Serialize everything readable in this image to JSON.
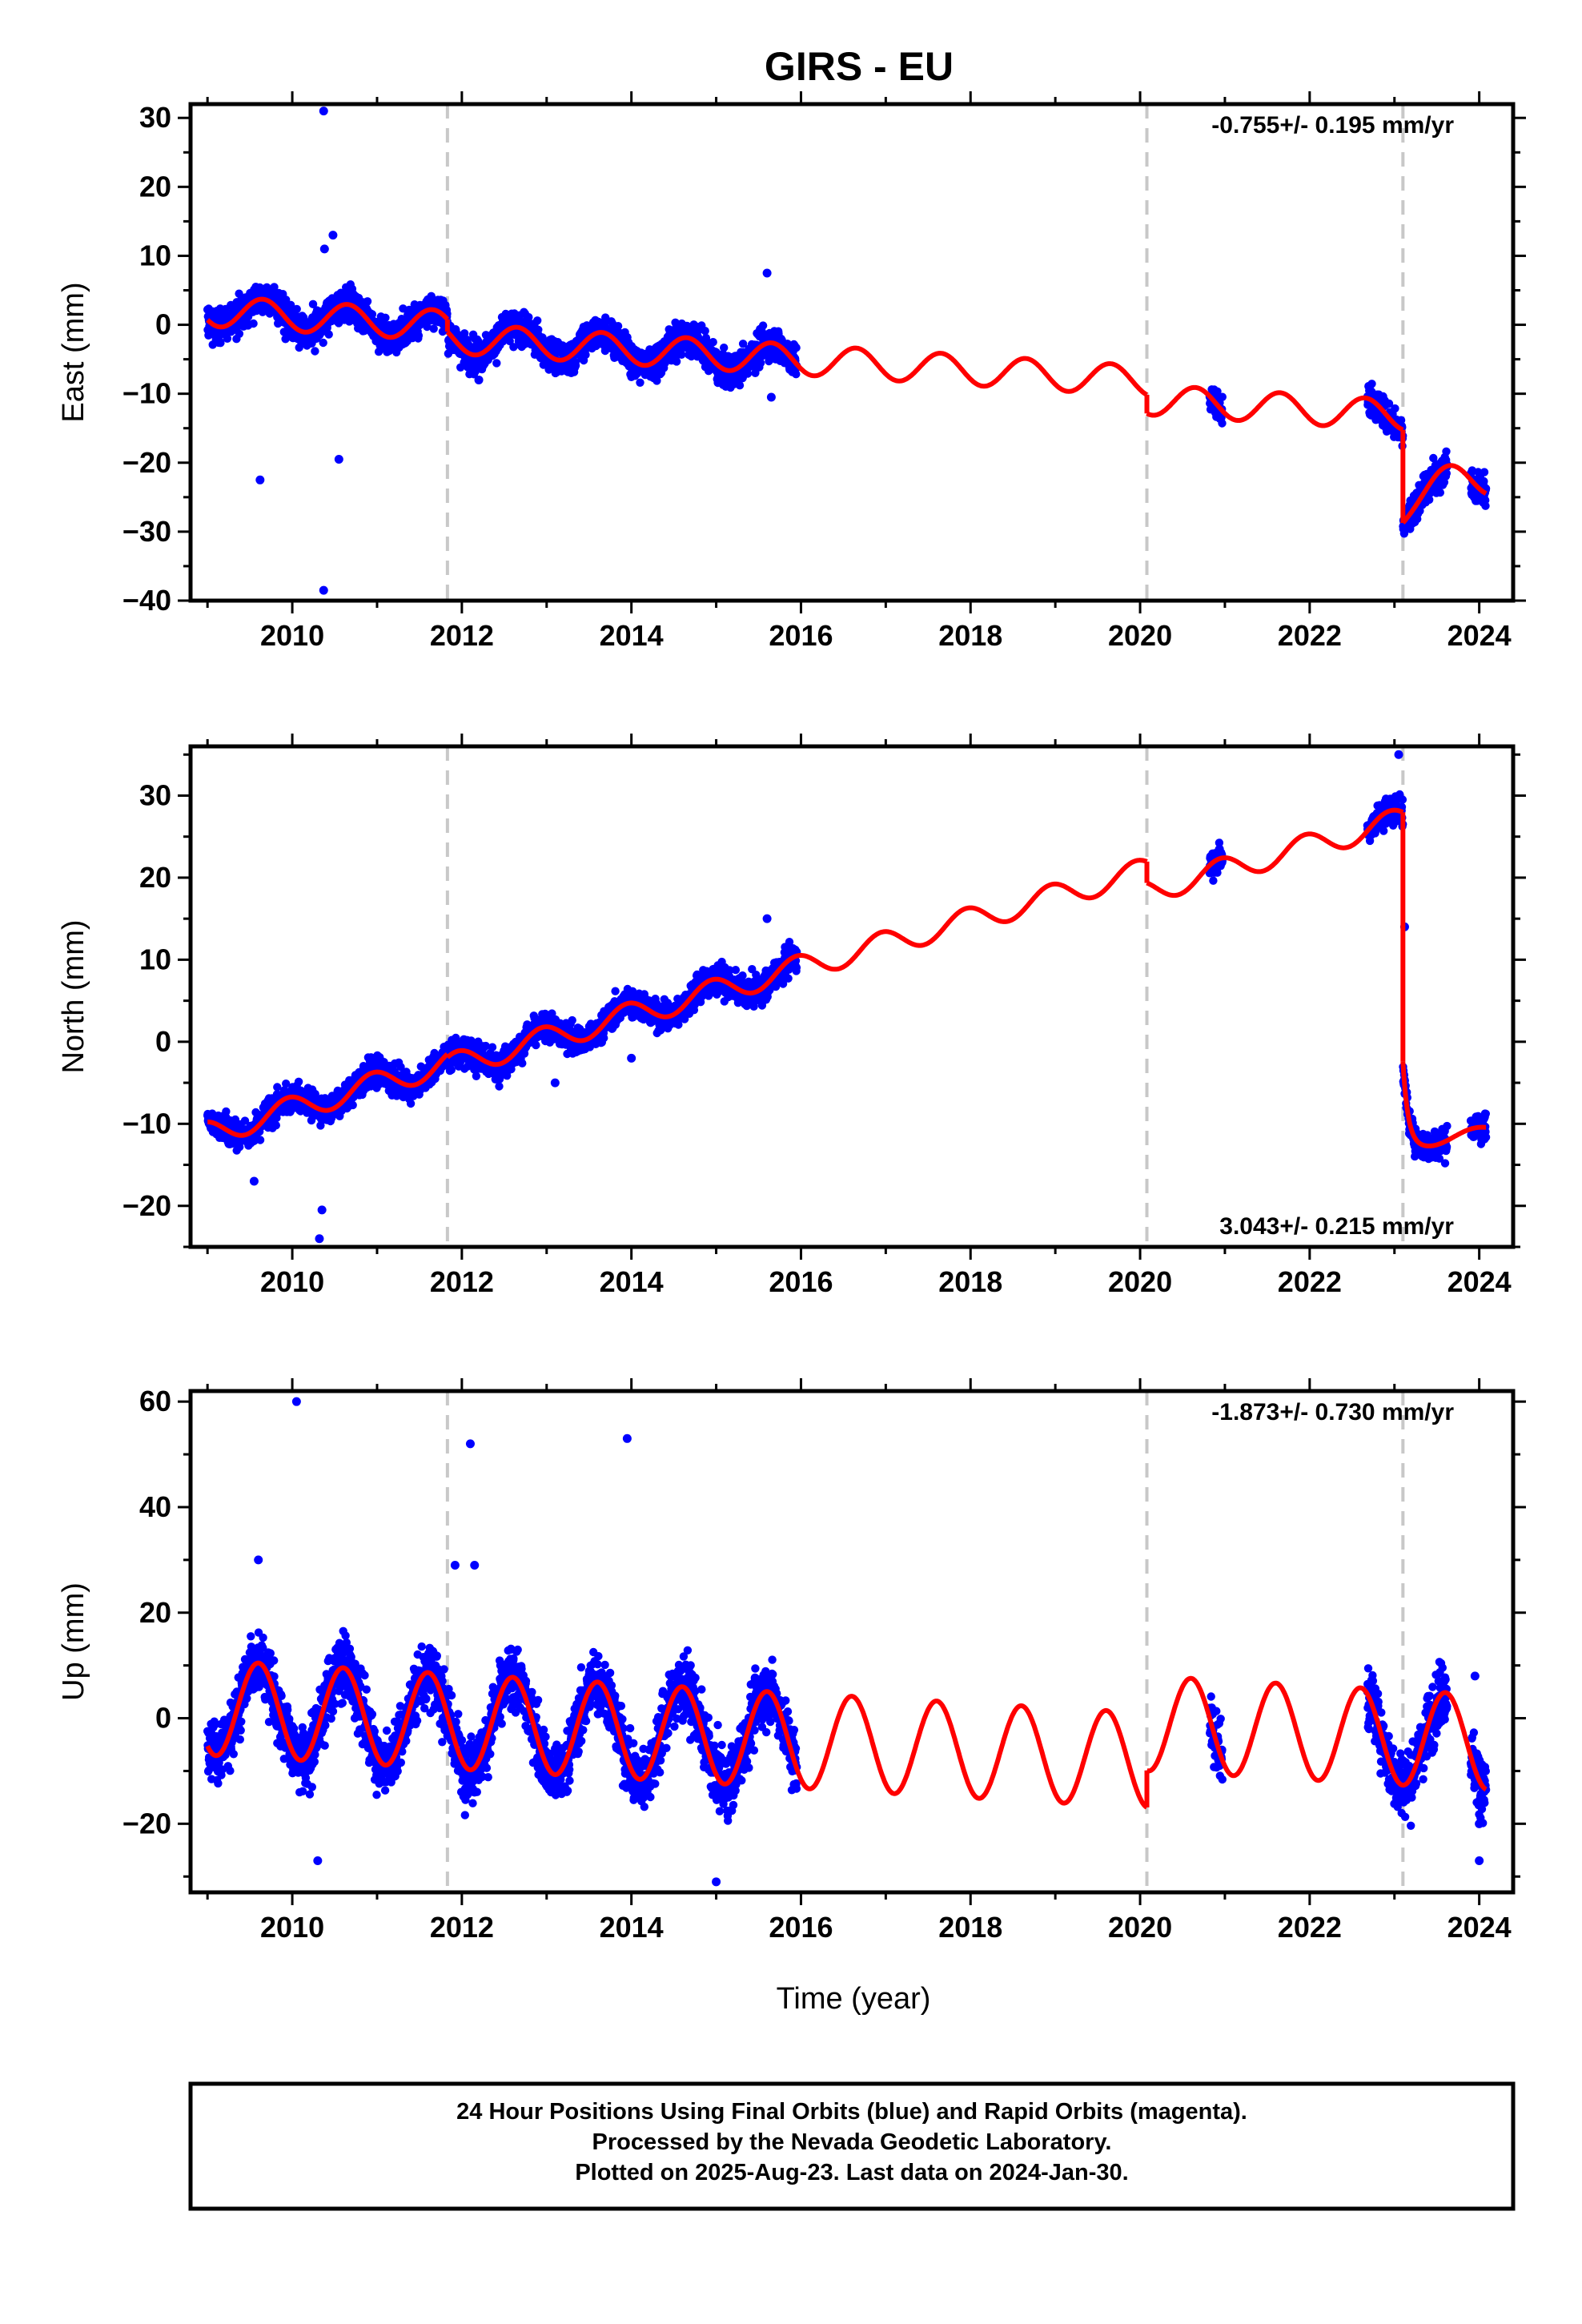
{
  "title": "GIRS - EU",
  "xlabel": "Time (year)",
  "caption": [
    "24 Hour Positions Using Final Orbits (blue) and Rapid Orbits (magenta).",
    "Processed by the Nevada Geodetic Laboratory.",
    "Plotted on 2025-Aug-23. Last data on 2024-Jan-30."
  ],
  "colors": {
    "data": "#0000ff",
    "model": "#ff0000",
    "events": "#c8c8c8",
    "frame": "#000000"
  },
  "chart_data": [
    {
      "type": "scatter",
      "component": "east",
      "ylabel": "East (mm)",
      "rate": "-0.755+/- 0.195 mm/yr",
      "rate_position": "top-right",
      "xlim": [
        2008.8,
        2024.4
      ],
      "ylim": [
        -40,
        32
      ],
      "xticks": [
        2010,
        2012,
        2014,
        2016,
        2018,
        2020,
        2022,
        2024
      ],
      "yticks": [
        -40,
        -30,
        -20,
        -10,
        0,
        10,
        20,
        30
      ],
      "event_lines": [
        2011.83,
        2020.08,
        2023.1
      ],
      "data_spans": [
        [
          2009.0,
          2015.95
        ],
        [
          2020.82,
          2020.97
        ],
        [
          2022.68,
          2023.62
        ],
        [
          2023.9,
          2024.08
        ]
      ],
      "model": {
        "segments": [
          {
            "start": 2009.0,
            "end": 2011.83,
            "offset": 2.0,
            "trend": -0.755,
            "amp": 2.2,
            "phase": 2009.4
          },
          {
            "start": 2011.83,
            "end": 2020.08,
            "offset": 0.2,
            "trend": -0.755,
            "amp": 2.2,
            "phase": 2009.4
          },
          {
            "start": 2020.08,
            "end": 2023.1,
            "offset": -2.5,
            "trend": -0.755,
            "amp": 2.2,
            "phase": 2009.4
          },
          {
            "start": 2023.1,
            "end": 2024.08,
            "offset": -11.0,
            "trend": -0.755,
            "amp": 2.2,
            "phase": 2009.4,
            "decay": [
              -5,
              0.25
            ]
          }
        ]
      },
      "outliers": [
        [
          2010.37,
          31
        ],
        [
          2010.48,
          13
        ],
        [
          2010.38,
          11
        ],
        [
          2009.62,
          -22.5
        ],
        [
          2010.55,
          -19.5
        ],
        [
          2010.37,
          -38.5
        ],
        [
          2015.6,
          7.5
        ],
        [
          2015.65,
          -10.5
        ],
        [
          2012.2,
          -8
        ]
      ],
      "noise": 2.2
    },
    {
      "type": "scatter",
      "component": "north",
      "ylabel": "North (mm)",
      "rate": "3.043+/- 0.215 mm/yr",
      "rate_position": "bottom-right",
      "xlim": [
        2008.8,
        2024.4
      ],
      "ylim": [
        -25,
        36
      ],
      "xticks": [
        2010,
        2012,
        2014,
        2016,
        2018,
        2020,
        2022,
        2024
      ],
      "yticks": [
        -20,
        -10,
        0,
        10,
        20,
        30
      ],
      "event_lines": [
        2011.83,
        2020.08,
        2023.1
      ],
      "data_spans": [
        [
          2009.0,
          2015.95
        ],
        [
          2020.82,
          2020.97
        ],
        [
          2022.68,
          2023.62
        ],
        [
          2023.9,
          2024.08
        ]
      ],
      "model": {
        "segments": [
          {
            "start": 2009.0,
            "end": 2011.83,
            "offset": -11.2,
            "trend": 3.043,
            "amp": 1.5,
            "phase": 2009.7
          },
          {
            "start": 2011.83,
            "end": 2020.08,
            "offset": -11.2,
            "trend": 2.9,
            "amp": 1.5,
            "phase": 2009.7
          },
          {
            "start": 2020.08,
            "end": 2023.1,
            "offset": -13.8,
            "trend": 2.9,
            "amp": 1.5,
            "phase": 2009.7
          },
          {
            "start": 2023.1,
            "end": 2024.08,
            "offset": -41.0,
            "trend": 2.0,
            "amp": 0.6,
            "phase": 2009.7,
            "decay": [
              10,
              0.06
            ]
          }
        ]
      },
      "outliers": [
        [
          2010.32,
          -24
        ],
        [
          2010.35,
          -20.5
        ],
        [
          2009.55,
          -17
        ],
        [
          2014.0,
          -2
        ],
        [
          2013.1,
          -5
        ],
        [
          2015.6,
          15
        ],
        [
          2023.05,
          35
        ],
        [
          2023.12,
          14
        ]
      ],
      "noise": 1.6
    },
    {
      "type": "scatter",
      "component": "up",
      "ylabel": "Up (mm)",
      "rate": "-1.873+/- 0.730 mm/yr",
      "rate_position": "top-right",
      "xlim": [
        2008.8,
        2024.4
      ],
      "ylim": [
        -33,
        62
      ],
      "xticks": [
        2010,
        2012,
        2014,
        2016,
        2018,
        2020,
        2022,
        2024
      ],
      "yticks": [
        -20,
        0,
        20,
        40,
        60
      ],
      "event_lines": [
        2011.83,
        2020.08,
        2023.1
      ],
      "data_spans": [
        [
          2009.0,
          2015.95
        ],
        [
          2020.82,
          2020.97
        ],
        [
          2022.68,
          2023.62
        ],
        [
          2023.9,
          2024.08
        ]
      ],
      "model": {
        "segments": [
          {
            "start": 2009.0,
            "end": 2020.08,
            "offset": 2.0,
            "trend": -0.9,
            "amp": 9.0,
            "phase": 2009.35
          },
          {
            "start": 2020.08,
            "end": 2024.08,
            "offset": 9.0,
            "trend": -0.9,
            "amp": 9.0,
            "phase": 2009.35
          }
        ]
      },
      "outliers": [
        [
          2010.05,
          60
        ],
        [
          2012.1,
          52
        ],
        [
          2013.95,
          53
        ],
        [
          2015.0,
          -31
        ],
        [
          2009.6,
          30
        ],
        [
          2011.92,
          29
        ],
        [
          2012.15,
          29
        ],
        [
          2024.0,
          -27
        ],
        [
          2024.0,
          -20
        ],
        [
          2023.95,
          8
        ],
        [
          2010.3,
          -27
        ]
      ],
      "noise": 5.5
    }
  ]
}
